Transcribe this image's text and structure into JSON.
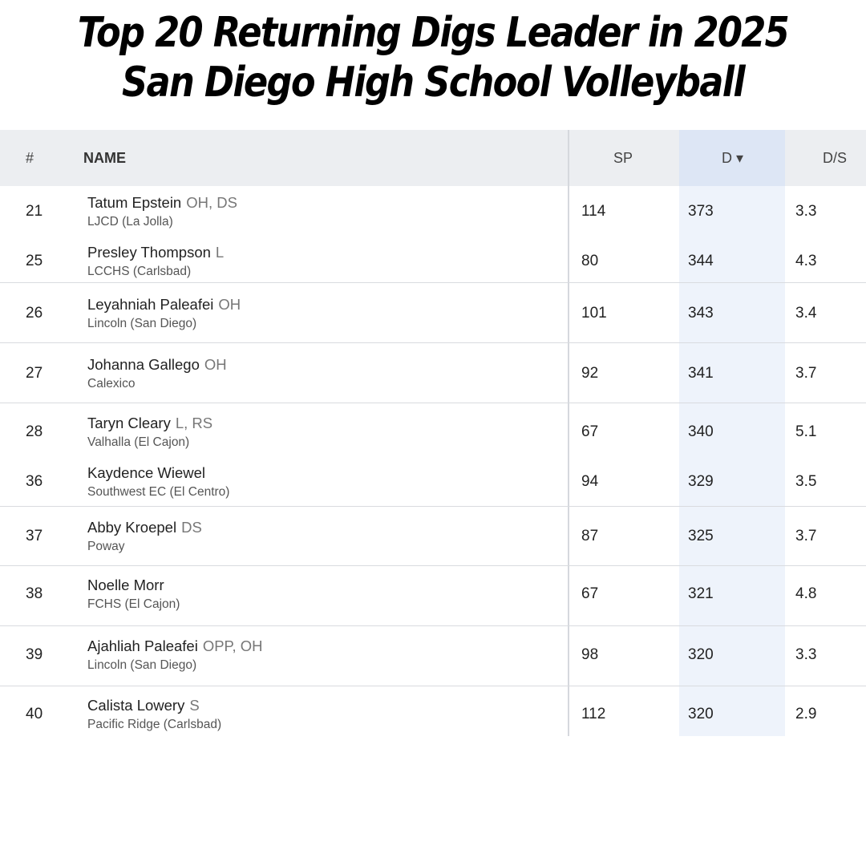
{
  "title": {
    "line1": "Top 20 Returning Digs Leader in 2025",
    "line2": "San Diego High School Volleyball"
  },
  "table": {
    "columns": {
      "rank": "#",
      "name": "NAME",
      "sp": "SP",
      "d": "D ▾",
      "ds": "D/S"
    },
    "sorted_column": "D",
    "rows": [
      {
        "rank": "21",
        "name": "Tatum Epstein",
        "position": "OH, DS",
        "school": "LJCD (La Jolla)",
        "sp": "114",
        "d": "373",
        "ds": "3.3"
      },
      {
        "rank": "25",
        "name": "Presley Thompson",
        "position": "L",
        "school": "LCCHS (Carlsbad)",
        "sp": "80",
        "d": "344",
        "ds": "4.3"
      },
      {
        "rank": "26",
        "name": "Leyahniah Paleafei",
        "position": "OH",
        "school": "Lincoln (San Diego)",
        "sp": "101",
        "d": "343",
        "ds": "3.4"
      },
      {
        "rank": "27",
        "name": "Johanna Gallego",
        "position": "OH",
        "school": "Calexico",
        "sp": "92",
        "d": "341",
        "ds": "3.7"
      },
      {
        "rank": "28",
        "name": "Taryn Cleary",
        "position": "L, RS",
        "school": "Valhalla (El Cajon)",
        "sp": "67",
        "d": "340",
        "ds": "5.1"
      },
      {
        "rank": "36",
        "name": "Kaydence Wiewel",
        "position": "",
        "school": "Southwest EC (El Centro)",
        "sp": "94",
        "d": "329",
        "ds": "3.5"
      },
      {
        "rank": "37",
        "name": "Abby Kroepel",
        "position": "DS",
        "school": "Poway",
        "sp": "87",
        "d": "325",
        "ds": "3.7"
      },
      {
        "rank": "38",
        "name": "Noelle Morr",
        "position": "",
        "school": "FCHS (El Cajon)",
        "sp": "67",
        "d": "321",
        "ds": "4.8"
      },
      {
        "rank": "39",
        "name": "Ajahliah Paleafei",
        "position": "OPP, OH",
        "school": "Lincoln (San Diego)",
        "sp": "98",
        "d": "320",
        "ds": "3.3"
      },
      {
        "rank": "40",
        "name": "Calista Lowery",
        "position": "S",
        "school": "Pacific Ridge (Carlsbad)",
        "sp": "112",
        "d": "320",
        "ds": "2.9"
      }
    ]
  }
}
